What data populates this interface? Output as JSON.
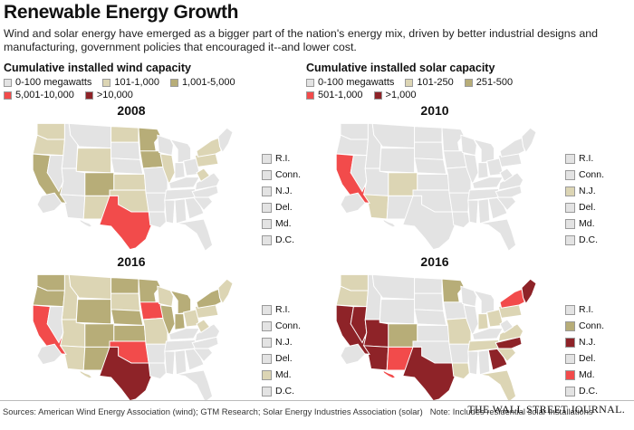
{
  "header": {
    "title": "Renewable Energy Growth",
    "subtitle": "Wind and solar energy have emerged as a bigger part of the nation's energy mix, driven by better industrial designs and manufacturing, government policies that encouraged it--and lower cost."
  },
  "colors": {
    "c0": "#e3e3e3",
    "c1": "#dcd5b4",
    "c2": "#b7ad78",
    "c3": "#f24b4b",
    "c4": "#8e2328"
  },
  "wind": {
    "title": "Cumulative installed wind capacity",
    "legend": [
      {
        "label": "0-100 megawatts",
        "color": "#e3e3e3"
      },
      {
        "label": "101-1,000",
        "color": "#dcd5b4"
      },
      {
        "label": "1,001-5,000",
        "color": "#b7ad78"
      },
      {
        "label": "5,001-10,000",
        "color": "#f24b4b"
      },
      {
        "label": ">10,000",
        "color": "#8e2328"
      }
    ]
  },
  "solar": {
    "title": "Cumulative installed solar capacity",
    "legend": [
      {
        "label": "0-100 megawatts",
        "color": "#e3e3e3"
      },
      {
        "label": "101-250",
        "color": "#dcd5b4"
      },
      {
        "label": "251-500",
        "color": "#b7ad78"
      },
      {
        "label": "501-1,000",
        "color": "#f24b4b"
      },
      {
        "label": ">1,000",
        "color": "#8e2328"
      }
    ]
  },
  "maps": [
    {
      "year": "2008",
      "states": {
        "WA": "c1",
        "OR": "c1",
        "CA": "c2",
        "ID": "c0",
        "NV": "c0",
        "MT": "c0",
        "WY": "c1",
        "UT": "c0",
        "AZ": "c0",
        "CO": "c2",
        "NM": "c1",
        "ND": "c1",
        "SD": "c0",
        "NE": "c0",
        "KS": "c1",
        "OK": "c1",
        "TX": "c3",
        "MN": "c2",
        "IA": "c2",
        "MO": "c0",
        "AR": "c0",
        "LA": "c0",
        "WI": "c0",
        "IL": "c1",
        "MI": "c0",
        "IN": "c0",
        "OH": "c0",
        "KY": "c0",
        "TN": "c0",
        "MS": "c0",
        "AL": "c0",
        "GA": "c0",
        "FL": "c0",
        "SC": "c0",
        "NC": "c0",
        "VA": "c0",
        "WV": "c1",
        "PA": "c1",
        "NY": "c1",
        "NE_R": "c0",
        "AK": "c0",
        "HI": "c0"
      },
      "small": [
        {
          "label": "R.I.",
          "color": "#e3e3e3"
        },
        {
          "label": "Conn.",
          "color": "#e3e3e3"
        },
        {
          "label": "N.J.",
          "color": "#e3e3e3"
        },
        {
          "label": "Del.",
          "color": "#e3e3e3"
        },
        {
          "label": "Md.",
          "color": "#e3e3e3"
        },
        {
          "label": "D.C.",
          "color": "#e3e3e3"
        }
      ]
    },
    {
      "year": "2010",
      "states": {
        "WA": "c0",
        "OR": "c0",
        "CA": "c3",
        "ID": "c0",
        "NV": "c0",
        "MT": "c0",
        "WY": "c0",
        "UT": "c0",
        "AZ": "c1",
        "CO": "c1",
        "NM": "c0",
        "ND": "c0",
        "SD": "c0",
        "NE": "c0",
        "KS": "c0",
        "OK": "c0",
        "TX": "c0",
        "MN": "c0",
        "IA": "c0",
        "MO": "c0",
        "AR": "c0",
        "LA": "c0",
        "WI": "c0",
        "IL": "c0",
        "MI": "c0",
        "IN": "c0",
        "OH": "c0",
        "KY": "c0",
        "TN": "c0",
        "MS": "c0",
        "AL": "c0",
        "GA": "c0",
        "FL": "c0",
        "SC": "c0",
        "NC": "c0",
        "VA": "c0",
        "WV": "c0",
        "PA": "c0",
        "NY": "c0",
        "NE_R": "c0",
        "AK": "c0",
        "HI": "c0"
      },
      "small": [
        {
          "label": "R.I.",
          "color": "#e3e3e3"
        },
        {
          "label": "Conn.",
          "color": "#e3e3e3"
        },
        {
          "label": "N.J.",
          "color": "#dcd5b4"
        },
        {
          "label": "Del.",
          "color": "#e3e3e3"
        },
        {
          "label": "Md.",
          "color": "#e3e3e3"
        },
        {
          "label": "D.C.",
          "color": "#e3e3e3"
        }
      ]
    },
    {
      "year": "2016",
      "states": {
        "WA": "c2",
        "OR": "c2",
        "CA": "c3",
        "ID": "c1",
        "NV": "c0",
        "MT": "c1",
        "WY": "c2",
        "UT": "c1",
        "AZ": "c1",
        "CO": "c2",
        "NM": "c2",
        "ND": "c2",
        "SD": "c1",
        "NE": "c2",
        "KS": "c2",
        "OK": "c3",
        "TX": "c4",
        "MN": "c2",
        "IA": "c3",
        "MO": "c1",
        "AR": "c0",
        "LA": "c0",
        "WI": "c1",
        "IL": "c2",
        "MI": "c2",
        "IN": "c2",
        "OH": "c1",
        "KY": "c0",
        "TN": "c0",
        "MS": "c0",
        "AL": "c0",
        "GA": "c0",
        "FL": "c0",
        "SC": "c0",
        "NC": "c0",
        "VA": "c0",
        "WV": "c1",
        "PA": "c1",
        "NY": "c2",
        "NE_R": "c1",
        "AK": "c0",
        "HI": "c1"
      },
      "small": [
        {
          "label": "R.I.",
          "color": "#e3e3e3"
        },
        {
          "label": "Conn.",
          "color": "#e3e3e3"
        },
        {
          "label": "N.J.",
          "color": "#e3e3e3"
        },
        {
          "label": "Del.",
          "color": "#e3e3e3"
        },
        {
          "label": "Md.",
          "color": "#dcd5b4"
        },
        {
          "label": "D.C.",
          "color": "#e3e3e3"
        }
      ]
    },
    {
      "year": "2016",
      "states": {
        "WA": "c1",
        "OR": "c1",
        "CA": "c4",
        "ID": "c0",
        "NV": "c4",
        "MT": "c0",
        "WY": "c0",
        "UT": "c4",
        "AZ": "c4",
        "CO": "c2",
        "NM": "c3",
        "ND": "c0",
        "SD": "c0",
        "NE": "c0",
        "KS": "c0",
        "OK": "c0",
        "TX": "c4",
        "MN": "c2",
        "IA": "c0",
        "MO": "c1",
        "AR": "c0",
        "LA": "c1",
        "WI": "c0",
        "IL": "c0",
        "MI": "c0",
        "IN": "c1",
        "OH": "c1",
        "KY": "c0",
        "TN": "c1",
        "MS": "c0",
        "AL": "c0",
        "GA": "c4",
        "FL": "c1",
        "SC": "c1",
        "NC": "c4",
        "VA": "c1",
        "WV": "c0",
        "PA": "c1",
        "NY": "c3",
        "NE_R": "c4",
        "AK": "c0",
        "HI": "c3"
      },
      "small": [
        {
          "label": "R.I.",
          "color": "#e3e3e3"
        },
        {
          "label": "Conn.",
          "color": "#b7ad78"
        },
        {
          "label": "N.J.",
          "color": "#8e2328"
        },
        {
          "label": "Del.",
          "color": "#e3e3e3"
        },
        {
          "label": "Md.",
          "color": "#f24b4b"
        },
        {
          "label": "D.C.",
          "color": "#e3e3e3"
        }
      ]
    }
  ],
  "footer": {
    "sources": "Sources: American Wind Energy Association (wind); GTM Research; Solar Energy Industries Association (solar)",
    "note": "Note: Includes residential solar installations",
    "brand": "THE WALL STREET JOURNAL."
  }
}
